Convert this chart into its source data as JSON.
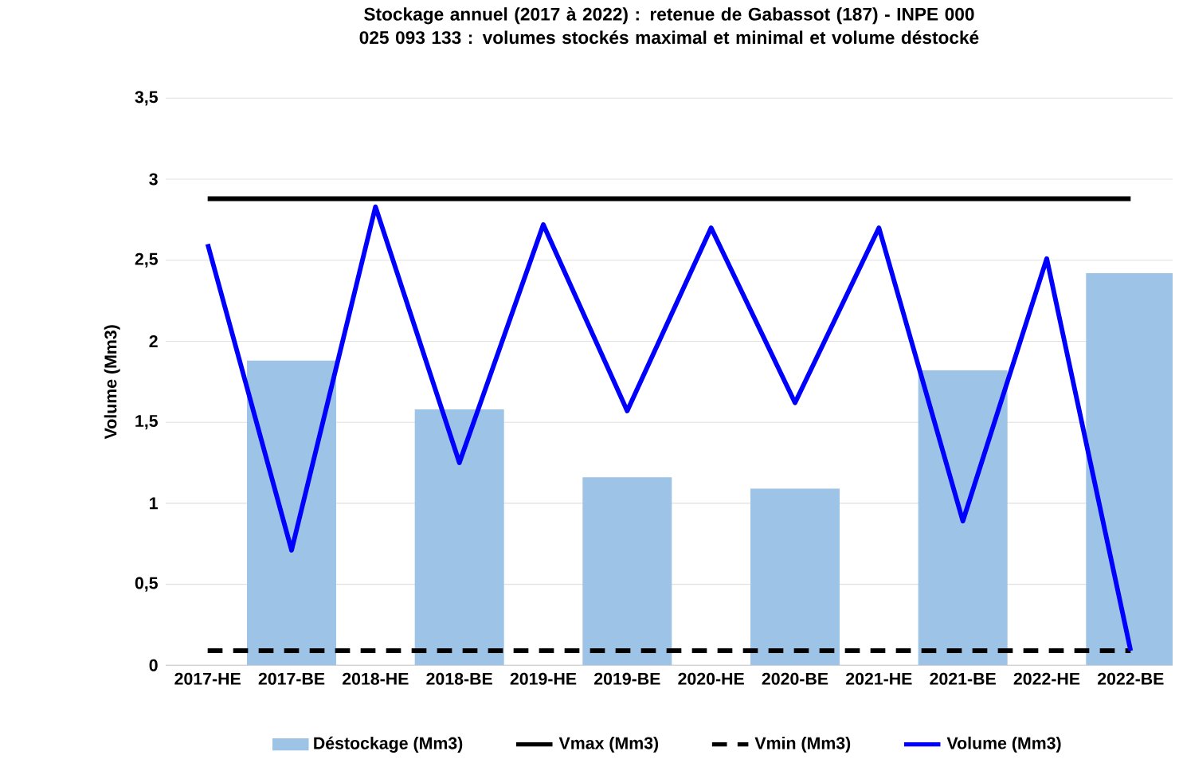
{
  "chart_data": {
    "type": "bar",
    "title": "Stockage annuel (2017 à 2022) : retenue de Gabassot (187) - INPE 000 025 093 133 : volumes stockés maximal et minimal et volume déstocké",
    "ylabel": "Volume (Mm3)",
    "categories": [
      "2017-HE",
      "2017-BE",
      "2018-HE",
      "2018-BE",
      "2019-HE",
      "2019-BE",
      "2020-HE",
      "2020-BE",
      "2021-HE",
      "2021-BE",
      "2022-HE",
      "2022-BE"
    ],
    "series": [
      {
        "name": "Déstockage (Mm3)",
        "color": "#9dc3e6",
        "values": [
          null,
          1.88,
          null,
          1.58,
          null,
          1.16,
          null,
          1.09,
          null,
          1.82,
          null,
          2.42
        ]
      },
      {
        "name": "Vmax (Mm3)",
        "type": "line",
        "color": "#000000",
        "line_style": "solid",
        "values": [
          2.88,
          2.88,
          2.88,
          2.88,
          2.88,
          2.88,
          2.88,
          2.88,
          2.88,
          2.88,
          2.88,
          2.88
        ]
      },
      {
        "name": "Vmin (Mm3)",
        "type": "line",
        "color": "#000000",
        "line_style": "dashed",
        "values": [
          0.09,
          0.09,
          0.09,
          0.09,
          0.09,
          0.09,
          0.09,
          0.09,
          0.09,
          0.09,
          0.09,
          0.09
        ]
      },
      {
        "name": "Volume (Mm3)",
        "type": "line",
        "color": "#0000ff",
        "line_style": "solid",
        "values": [
          2.6,
          0.71,
          2.83,
          1.25,
          2.72,
          1.57,
          2.7,
          1.62,
          2.7,
          0.89,
          2.51,
          0.09
        ]
      }
    ],
    "ylim": [
      0,
      3.5
    ],
    "yticks": [
      0,
      {
        "value": 0.5,
        "label": "0,5"
      },
      1,
      {
        "value": 1.5,
        "label": "1,5"
      },
      2,
      {
        "value": 2.5,
        "label": "2,5"
      },
      3,
      {
        "value": 3.5,
        "label": "3,5"
      }
    ],
    "grid": "y",
    "legend": "bottom"
  }
}
